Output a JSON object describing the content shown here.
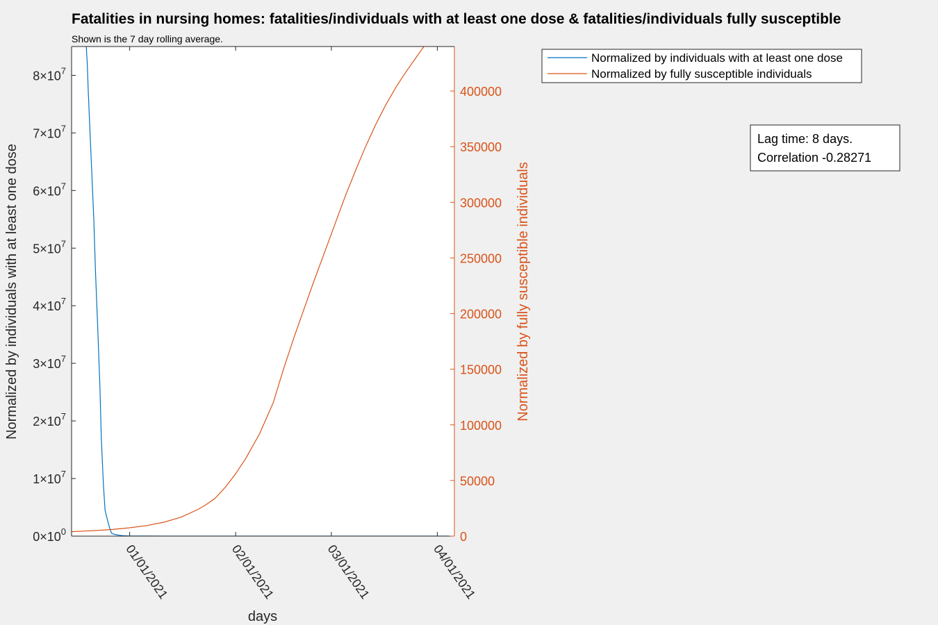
{
  "chart_data": {
    "type": "line",
    "title": "Fatalities in nursing homes: fatalities/individuals with at least one dose & fatalities/individuals fully susceptible",
    "subtitle": "Shown is the 7 day rolling average.",
    "xlabel": "days",
    "ylabel_left": "Normalized by individuals with at least one dose",
    "ylabel_right": "Normalized by fully susceptible individuals",
    "x_ticks": [
      "01/01/2021",
      "02/01/2021",
      "03/01/2021",
      "04/01/2021"
    ],
    "x_tick_days": [
      0,
      31,
      59,
      90
    ],
    "xlim_days": [
      -17,
      95
    ],
    "ylim_left": [
      0,
      85000000
    ],
    "ylim_right": [
      0,
      440000
    ],
    "yticks_left": [
      {
        "value": 0,
        "mantissa": "0",
        "exponent": "0"
      },
      {
        "value": 10000000,
        "mantissa": "1",
        "exponent": "7"
      },
      {
        "value": 20000000,
        "mantissa": "2",
        "exponent": "7"
      },
      {
        "value": 30000000,
        "mantissa": "3",
        "exponent": "7"
      },
      {
        "value": 40000000,
        "mantissa": "4",
        "exponent": "7"
      },
      {
        "value": 50000000,
        "mantissa": "5",
        "exponent": "7"
      },
      {
        "value": 60000000,
        "mantissa": "6",
        "exponent": "7"
      },
      {
        "value": 70000000,
        "mantissa": "7",
        "exponent": "7"
      },
      {
        "value": 80000000,
        "mantissa": "8",
        "exponent": "7"
      }
    ],
    "yticks_right": [
      0,
      50000,
      100000,
      150000,
      200000,
      250000,
      300000,
      350000,
      400000
    ],
    "series": [
      {
        "name": "Normalized by individuals with at least one dose",
        "axis": "left",
        "color": "#0072bd",
        "x_days": [
          -12.7,
          -12.4,
          -12.1,
          -11.6,
          -11,
          -10.5,
          -10,
          -9.4,
          -8.7,
          -8.3,
          -7.7,
          -7.2,
          -6.6,
          -5.9,
          -5.3,
          -4.4,
          -3,
          -2,
          -1,
          0,
          2,
          5,
          10,
          20,
          35,
          50,
          65,
          80,
          93
        ],
        "values": [
          85000000,
          82000000,
          77000000,
          70000000,
          62000000,
          55000000,
          46000000,
          37000000,
          26000000,
          17000000,
          9000000,
          4500000,
          3000000,
          1500000,
          500000,
          300000,
          150000,
          80000,
          50000,
          30000,
          15000,
          8000,
          4000,
          2000,
          1000,
          500,
          300,
          200,
          100
        ]
      },
      {
        "name": "Normalized by fully susceptible individuals",
        "axis": "right",
        "color": "#d95319",
        "x_days": [
          -17,
          -10,
          -5,
          0,
          5,
          10,
          15,
          20,
          22,
          25,
          28,
          31,
          34,
          38,
          42,
          45,
          48,
          51,
          54,
          57,
          60,
          63,
          66,
          69,
          72,
          75,
          78,
          81,
          84,
          87,
          89,
          90,
          93
        ],
        "values": [
          4000,
          5000,
          6000,
          7500,
          9500,
          12500,
          17000,
          24000,
          27500,
          34000,
          44000,
          56000,
          70000,
          92000,
          120000,
          150000,
          178000,
          204000,
          230000,
          255000,
          280000,
          305000,
          328000,
          350000,
          370000,
          388000,
          404000,
          418000,
          431000,
          444000,
          449000,
          452000,
          456000
        ]
      }
    ],
    "legend_position": "top-right, outside plot",
    "annotation": [
      "Lag time: 8 days.",
      "Correlation -0.28271"
    ]
  }
}
